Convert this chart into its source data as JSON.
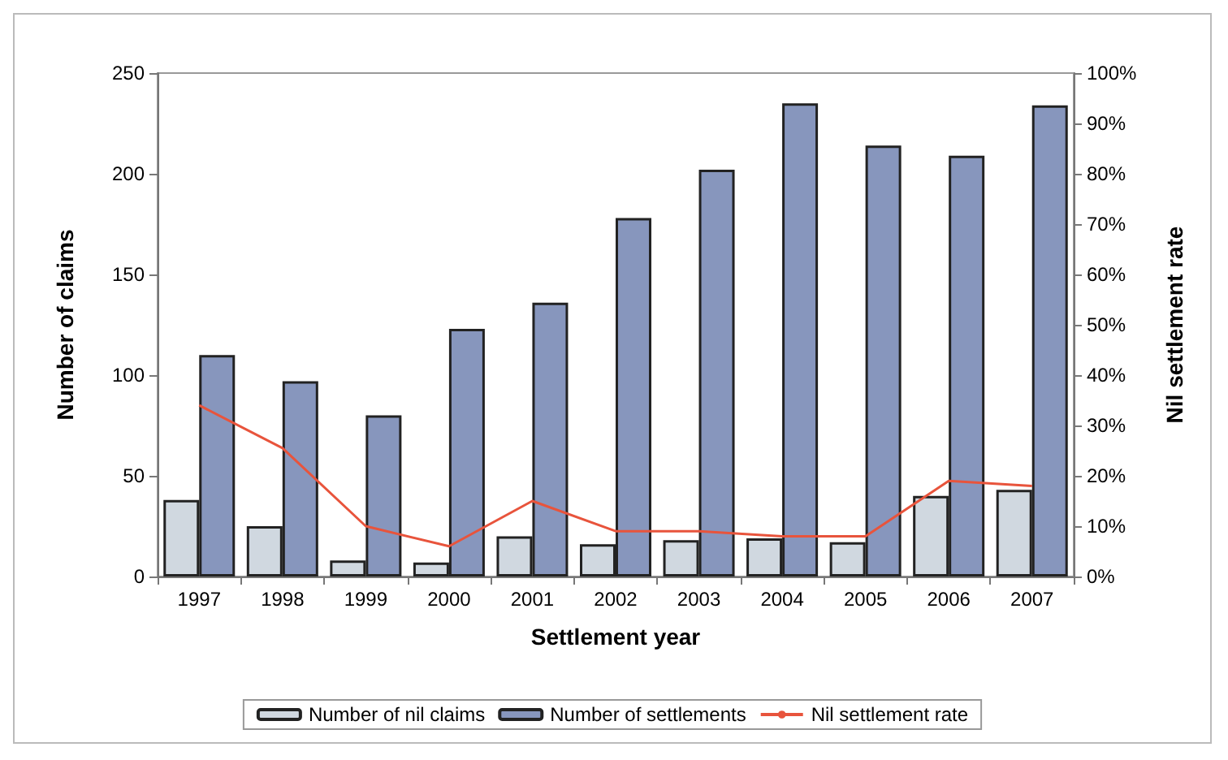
{
  "chart_data": {
    "type": "bar",
    "xlabel": "Settlement year",
    "ylabel": "Number of claims",
    "y2label": "Nil settlement rate",
    "categories": [
      "1997",
      "1998",
      "1999",
      "2000",
      "2001",
      "2002",
      "2003",
      "2004",
      "2005",
      "2006",
      "2007"
    ],
    "series": [
      {
        "name": "Number of nil claims",
        "color": "#d0d8e0",
        "values": [
          38,
          25,
          8,
          7,
          20,
          16,
          18,
          19,
          17,
          40,
          43
        ]
      },
      {
        "name": "Number of settlements",
        "color": "#8796bd",
        "values": [
          110,
          97,
          80,
          123,
          136,
          178,
          202,
          235,
          214,
          209,
          234
        ]
      },
      {
        "name": "Nil settlement rate",
        "type": "line",
        "axis": "y2",
        "color": "#e8543c",
        "values": [
          34,
          25.5,
          10,
          6,
          15,
          9,
          9,
          8,
          8,
          19,
          18
        ]
      }
    ],
    "ylim": [
      0,
      250
    ],
    "yticks": [
      0,
      50,
      100,
      150,
      200,
      250
    ],
    "y2lim": [
      0,
      100
    ],
    "y2ticks": [
      {
        "value": 0,
        "label": "0%"
      },
      {
        "value": 10,
        "label": "10%"
      },
      {
        "value": 20,
        "label": "20%"
      },
      {
        "value": 30,
        "label": "30%"
      },
      {
        "value": 40,
        "label": "40%"
      },
      {
        "value": 50,
        "label": "50%"
      },
      {
        "value": 60,
        "label": "60%"
      },
      {
        "value": 70,
        "label": "70%"
      },
      {
        "value": 80,
        "label": "80%"
      },
      {
        "value": 90,
        "label": "90%"
      },
      {
        "value": 100,
        "label": "100%"
      }
    ],
    "grid": false,
    "legend": "bottom",
    "marker": "none"
  }
}
